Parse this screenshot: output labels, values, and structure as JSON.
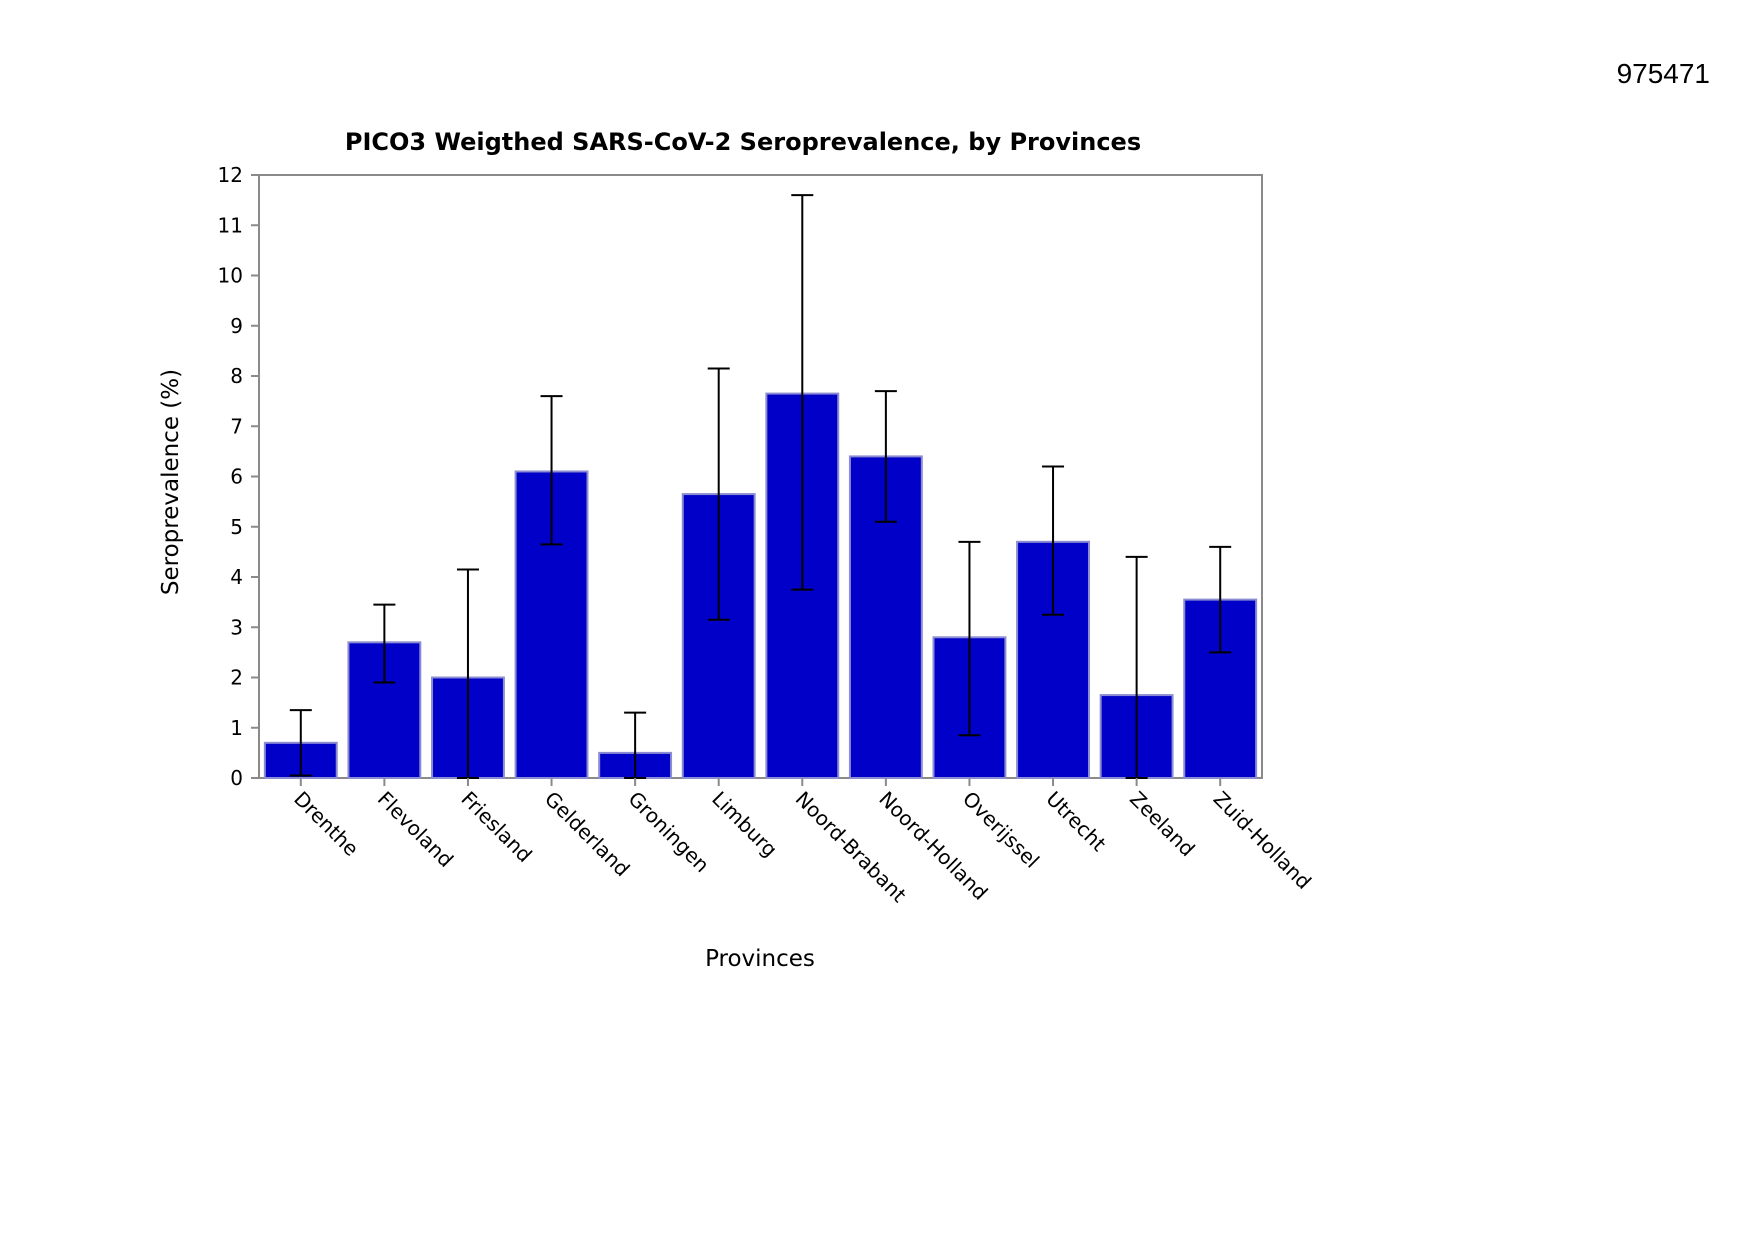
{
  "page": {
    "id_number": "975471"
  },
  "colors": {
    "bar_fill": "#0000c8",
    "bar_stroke": "#8c8cd2",
    "frame": "#8a8a8a",
    "error_bar": "#000000"
  },
  "chart_data": {
    "type": "bar",
    "title": "PICO3 Weigthed SARS-CoV-2 Seroprevalence, by Provinces",
    "xlabel": "Provinces",
    "ylabel": "Seroprevalence (%)",
    "ylim": [
      0,
      12
    ],
    "yticks": [
      0,
      1,
      2,
      3,
      4,
      5,
      6,
      7,
      8,
      9,
      10,
      11,
      12
    ],
    "grid": false,
    "categories": [
      "Drenthe",
      "Flevoland",
      "Friesland",
      "Gelderland",
      "Groningen",
      "Limburg",
      "Noord-Brabant",
      "Noord-Holland",
      "Overijssel",
      "Utrecht",
      "Zeeland",
      "Zuid-Holland"
    ],
    "values": [
      0.7,
      2.7,
      2.0,
      6.1,
      0.5,
      5.65,
      7.65,
      6.4,
      2.8,
      4.7,
      1.65,
      3.55
    ],
    "error_lower": [
      0.05,
      1.9,
      0.0,
      4.65,
      0.0,
      3.15,
      3.75,
      5.1,
      0.85,
      3.25,
      0.0,
      2.5
    ],
    "error_upper": [
      1.35,
      3.45,
      4.15,
      7.6,
      1.3,
      8.15,
      11.6,
      7.7,
      4.7,
      6.2,
      4.4,
      4.6
    ]
  }
}
